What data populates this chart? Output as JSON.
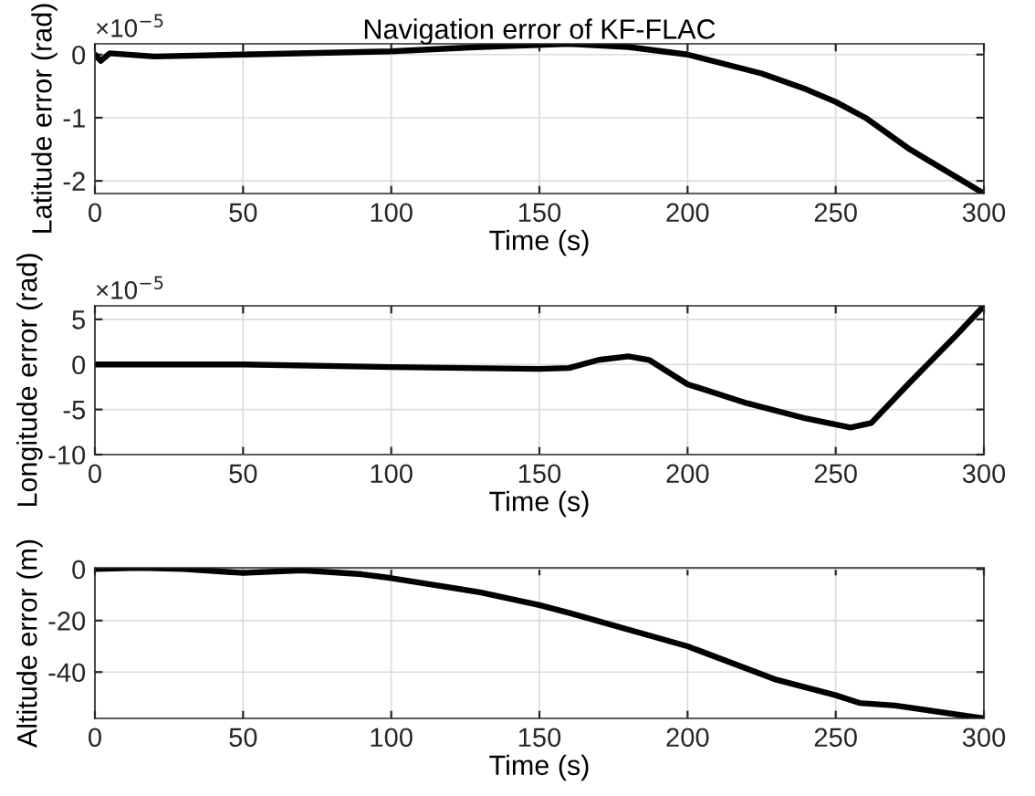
{
  "chart_data": [
    {
      "type": "line",
      "title": "Navigation error of KF-FLAC",
      "xlabel": "Time (s)",
      "ylabel": "Latitude error (rad)",
      "annotations": [
        "×10$^{−5}$"
      ],
      "x": [
        0,
        2,
        5,
        20,
        50,
        100,
        130,
        160,
        180,
        200,
        225,
        240,
        250,
        260,
        275,
        300
      ],
      "series": [
        {
          "color": "#000000",
          "values": [
            0,
            -0.1,
            0.02,
            -0.03,
            0.0,
            0.05,
            0.12,
            0.17,
            0.12,
            0.0,
            -0.3,
            -0.55,
            -0.75,
            -1.0,
            -1.5,
            -2.2
          ]
        }
      ],
      "xlim": [
        0,
        300
      ],
      "xticks": [
        0,
        50,
        100,
        150,
        200,
        250,
        300
      ],
      "ylim": [
        -2.2,
        0.17
      ],
      "yticks": [
        -2,
        -1,
        0
      ],
      "grid": true
    },
    {
      "type": "line",
      "xlabel": "Time (s)",
      "ylabel": "Longitude error (rad)",
      "annotations": [
        "×10$^{−5}$"
      ],
      "x": [
        0,
        50,
        100,
        150,
        160,
        170,
        180,
        187,
        200,
        220,
        240,
        255,
        262,
        275,
        290,
        300
      ],
      "series": [
        {
          "color": "#000000",
          "values": [
            0,
            0,
            -0.3,
            -0.5,
            -0.4,
            0.5,
            0.9,
            0.5,
            -2.2,
            -4.3,
            -6,
            -7,
            -6.5,
            -2,
            3,
            6.5
          ]
        }
      ],
      "xlim": [
        0,
        300
      ],
      "xticks": [
        0,
        50,
        100,
        150,
        200,
        250,
        300
      ],
      "ylim": [
        -10,
        6.5
      ],
      "yticks": [
        -10,
        -5,
        0,
        5
      ],
      "grid": true
    },
    {
      "type": "line",
      "xlabel": "Time (s)",
      "ylabel": "Altitude error (m)",
      "x": [
        0,
        15,
        30,
        50,
        70,
        90,
        100,
        130,
        150,
        160,
        200,
        230,
        250,
        258,
        270,
        300
      ],
      "series": [
        {
          "color": "#000000",
          "values": [
            0,
            0.5,
            0,
            -1.5,
            -0.5,
            -2,
            -3.5,
            -9,
            -14,
            -17,
            -30,
            -43,
            -49,
            -52,
            -53,
            -58
          ]
        }
      ],
      "xlim": [
        0,
        300
      ],
      "xticks": [
        0,
        50,
        100,
        150,
        200,
        250,
        300
      ],
      "ylim": [
        -58,
        0.5
      ],
      "yticks": [
        -40,
        -20,
        0
      ],
      "grid": true
    }
  ]
}
